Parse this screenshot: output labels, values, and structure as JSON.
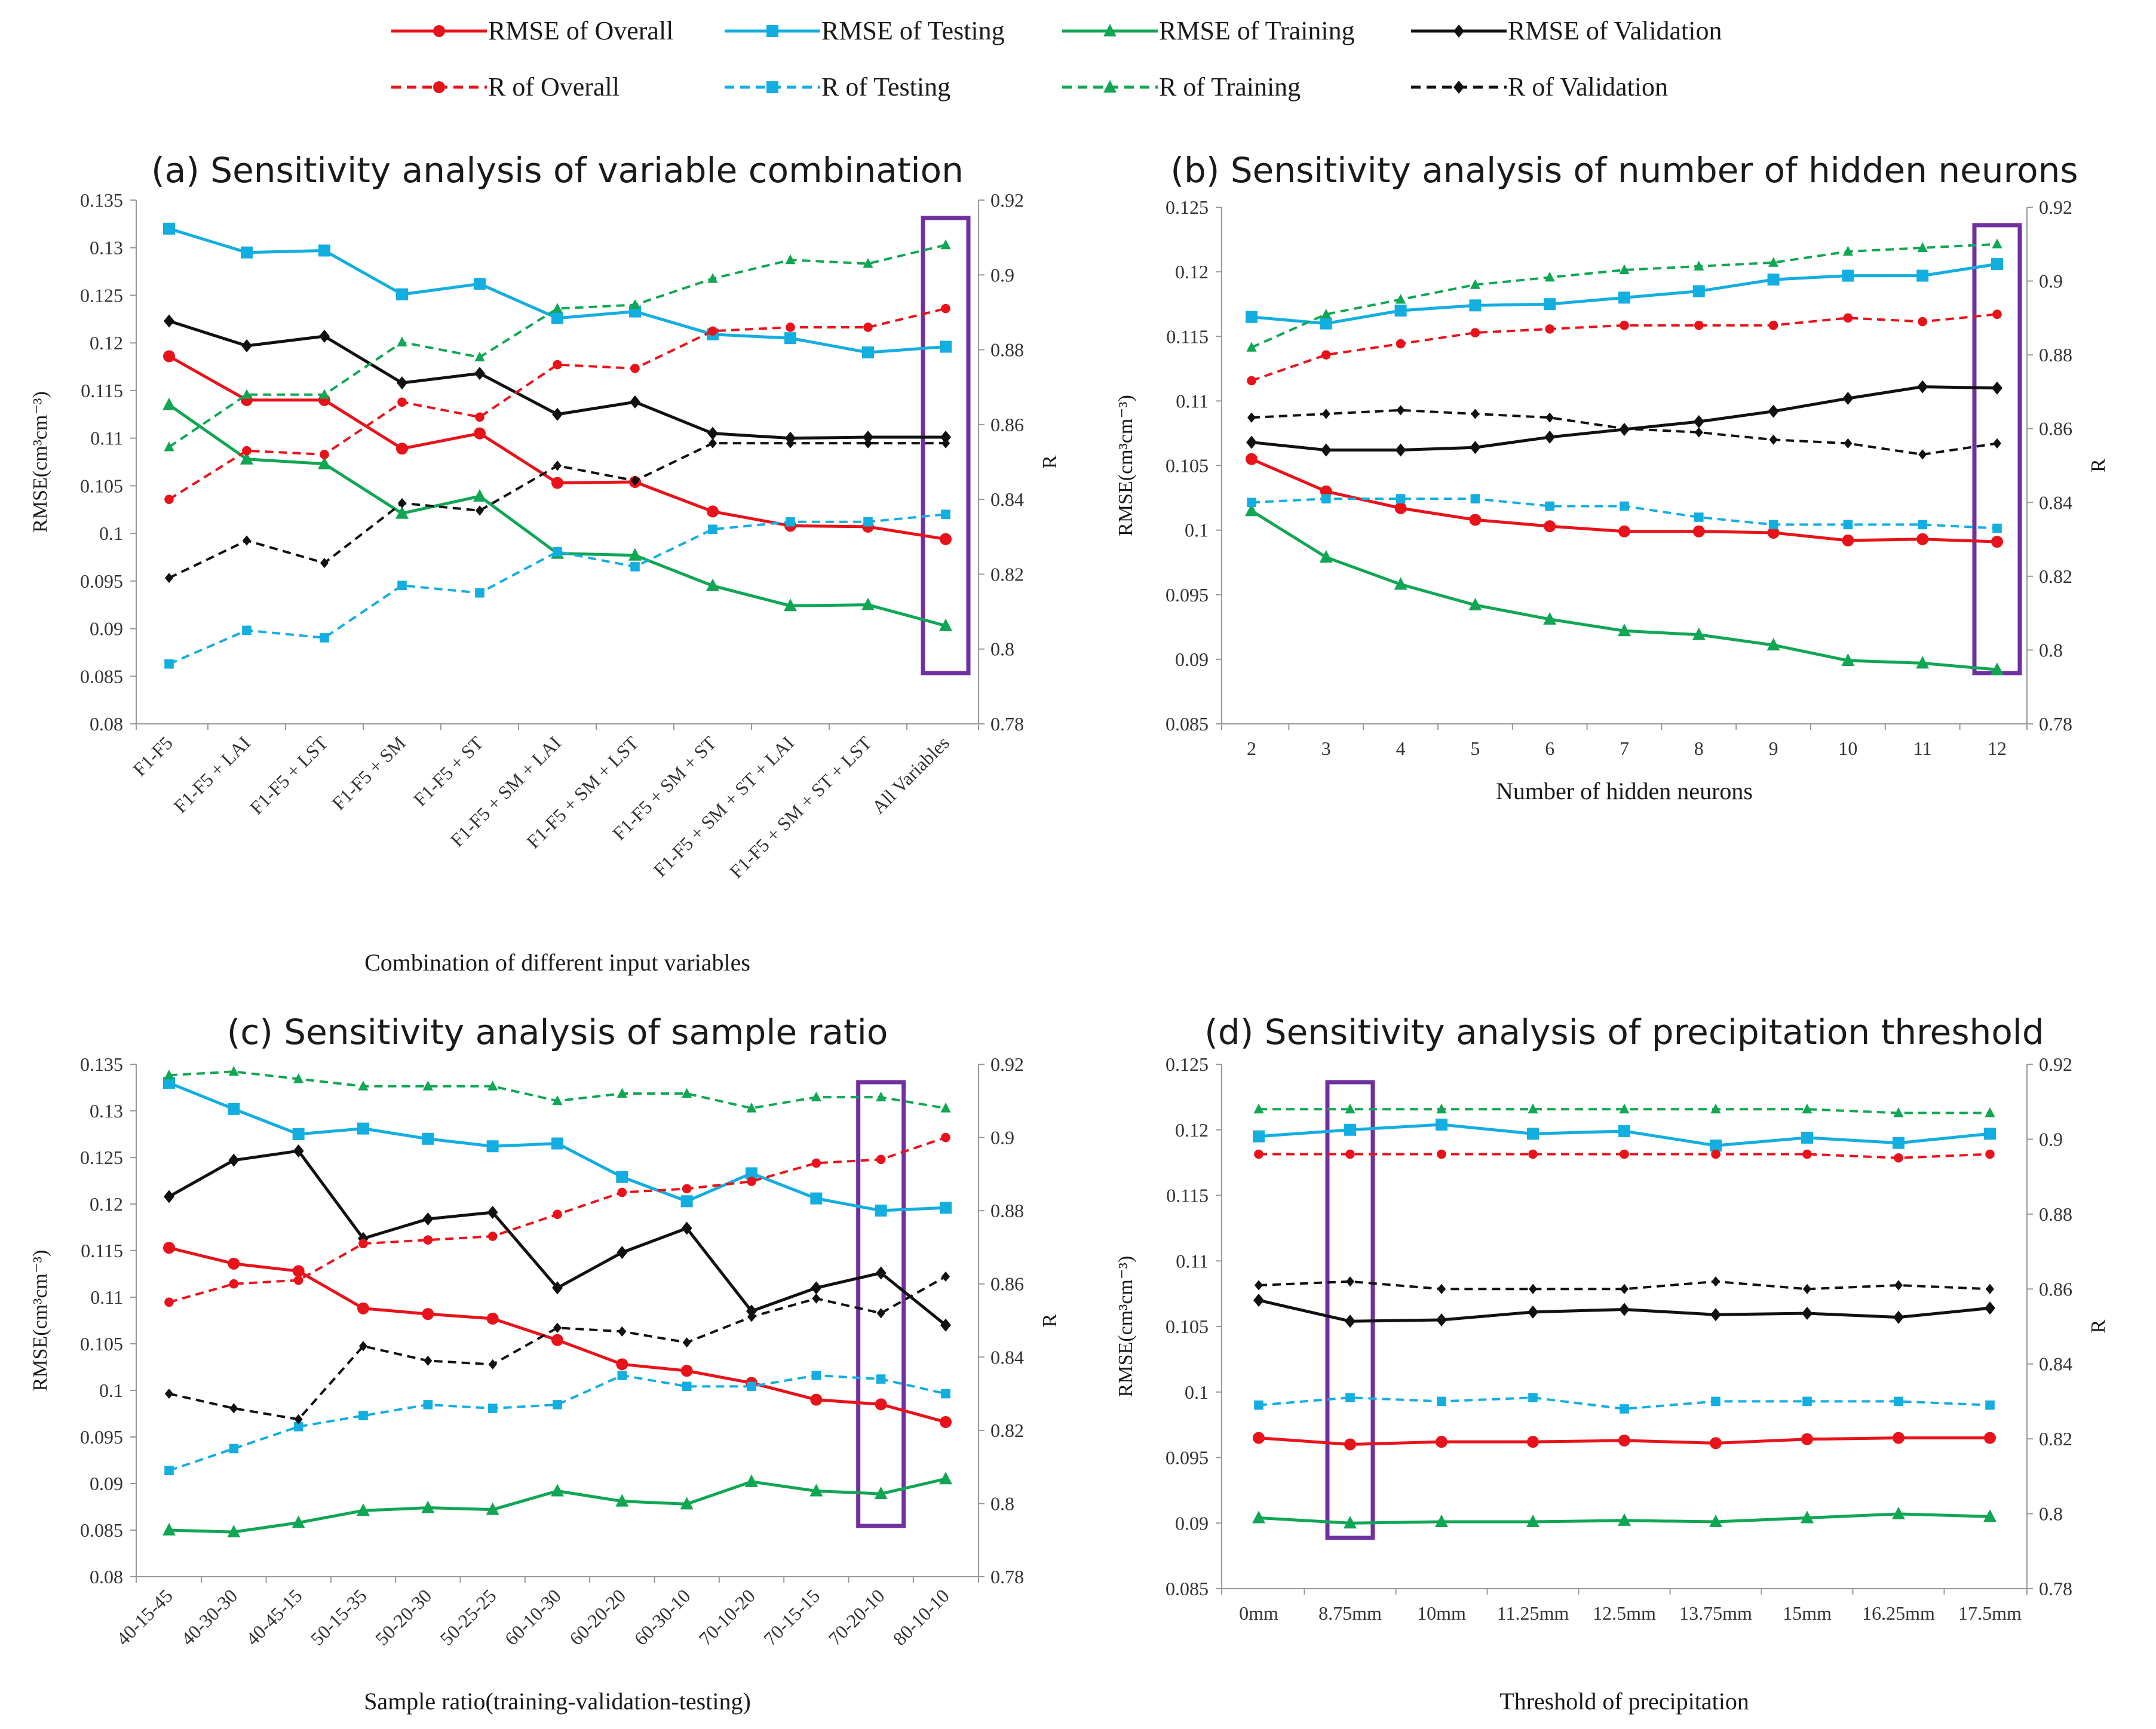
{
  "colors": {
    "overall": "#e8131a",
    "testing": "#13aee0",
    "training": "#10a653",
    "validation": "#111111",
    "highlight": "#7030a0",
    "axis": "#999999"
  },
  "legend": [
    {
      "label": "RMSE of Overall",
      "color": "#e8131a",
      "dash": false,
      "marker": "circle"
    },
    {
      "label": "RMSE of Testing",
      "color": "#13aee0",
      "dash": false,
      "marker": "square"
    },
    {
      "label": "RMSE of Training",
      "color": "#10a653",
      "dash": false,
      "marker": "triangle"
    },
    {
      "label": "RMSE of Validation",
      "color": "#111111",
      "dash": false,
      "marker": "diamond"
    },
    {
      "label": "R of Overall",
      "color": "#e8131a",
      "dash": true,
      "marker": "circle"
    },
    {
      "label": "R of Testing",
      "color": "#13aee0",
      "dash": true,
      "marker": "square"
    },
    {
      "label": "R of Training",
      "color": "#10a653",
      "dash": true,
      "marker": "triangle"
    },
    {
      "label": "R of Validation",
      "color": "#111111",
      "dash": true,
      "marker": "diamond"
    }
  ],
  "chart_data": [
    {
      "type": "line",
      "title": "(a) Sensitivity analysis of variable combination",
      "xlabel": "Combination of different input variables",
      "ylabel": "RMSE(cm³cm⁻³)",
      "ylabel_right": "R",
      "ylim": [
        0.08,
        0.135
      ],
      "yticks": [
        "0.08",
        "0.085",
        "0.09",
        "0.095",
        "0.1",
        "0.105",
        "0.11",
        "0.115",
        "0.12",
        "0.125",
        "0.13",
        "0.135"
      ],
      "y2lim": [
        0.78,
        0.92
      ],
      "y2ticks": [
        "0.78",
        "0.8",
        "0.82",
        "0.84",
        "0.86",
        "0.88",
        "0.9",
        "0.92"
      ],
      "rotate_x": true,
      "highlight_index": 10,
      "categories": [
        "F1-F5",
        "F1-F5 + LAI",
        "F1-F5 + LST",
        "F1-F5 + SM",
        "F1-F5 + ST",
        "F1-F5 + SM + LAI",
        "F1-F5 + SM + LST",
        "F1-F5 + SM + ST",
        "F1-F5 + SM + ST + LAI",
        "F1-F5 + SM + ST + LST",
        "All Variables"
      ],
      "series": [
        {
          "name": "RMSE of Overall",
          "axis": "left",
          "values": [
            0.1186,
            0.114,
            0.114,
            0.1089,
            0.1105,
            0.1053,
            0.1054,
            0.1023,
            0.1008,
            0.1007,
            0.0994
          ]
        },
        {
          "name": "RMSE of Testing",
          "axis": "left",
          "values": [
            0.132,
            0.1295,
            0.1297,
            0.1251,
            0.1262,
            0.1226,
            0.1233,
            0.1209,
            0.1205,
            0.119,
            0.1196
          ]
        },
        {
          "name": "RMSE of Training",
          "axis": "left",
          "values": [
            0.1135,
            0.1078,
            0.1073,
            0.1021,
            0.1039,
            0.0979,
            0.0977,
            0.0945,
            0.0924,
            0.0925,
            0.0903
          ]
        },
        {
          "name": "RMSE of Validation",
          "axis": "left",
          "values": [
            0.1223,
            0.1197,
            0.1207,
            0.1158,
            0.1168,
            0.1125,
            0.1138,
            0.1105,
            0.11,
            0.1101,
            0.1101
          ]
        },
        {
          "name": "R of Overall",
          "axis": "right",
          "values": [
            0.84,
            0.853,
            0.852,
            0.866,
            0.862,
            0.876,
            0.875,
            0.885,
            0.886,
            0.886,
            0.891
          ]
        },
        {
          "name": "R of Testing",
          "axis": "right",
          "values": [
            0.796,
            0.805,
            0.803,
            0.817,
            0.815,
            0.826,
            0.822,
            0.832,
            0.834,
            0.834,
            0.836
          ]
        },
        {
          "name": "R of Training",
          "axis": "right",
          "values": [
            0.854,
            0.868,
            0.868,
            0.882,
            0.878,
            0.891,
            0.892,
            0.899,
            0.904,
            0.903,
            0.908
          ]
        },
        {
          "name": "R of Validation",
          "axis": "right",
          "values": [
            0.819,
            0.829,
            0.823,
            0.839,
            0.837,
            0.849,
            0.845,
            0.855,
            0.855,
            0.855,
            0.855
          ]
        }
      ]
    },
    {
      "type": "line",
      "title": "(b) Sensitivity analysis of number of hidden neurons",
      "xlabel": "Number of hidden neurons",
      "ylabel": "RMSE(cm³cm⁻³)",
      "ylabel_right": "R",
      "ylim": [
        0.085,
        0.125
      ],
      "yticks": [
        "0.085",
        "0.09",
        "0.095",
        "0.1",
        "0.105",
        "0.11",
        "0.115",
        "0.12",
        "0.125"
      ],
      "y2lim": [
        0.78,
        0.92
      ],
      "y2ticks": [
        "0.78",
        "0.8",
        "0.82",
        "0.84",
        "0.86",
        "0.88",
        "0.9",
        "0.92"
      ],
      "rotate_x": false,
      "highlight_index": 10,
      "categories": [
        "2",
        "3",
        "4",
        "5",
        "6",
        "7",
        "8",
        "9",
        "10",
        "11",
        "12"
      ],
      "series": [
        {
          "name": "RMSE of Overall",
          "axis": "left",
          "values": [
            0.1055,
            0.103,
            0.1017,
            0.1008,
            0.1003,
            0.0999,
            0.0999,
            0.0998,
            0.0992,
            0.0993,
            0.0991
          ]
        },
        {
          "name": "RMSE of Testing",
          "axis": "left",
          "values": [
            0.1165,
            0.116,
            0.117,
            0.1174,
            0.1175,
            0.118,
            0.1185,
            0.1194,
            0.1197,
            0.1197,
            0.1206
          ]
        },
        {
          "name": "RMSE of Training",
          "axis": "left",
          "values": [
            0.1015,
            0.0979,
            0.0958,
            0.0942,
            0.0931,
            0.0922,
            0.0919,
            0.0911,
            0.0899,
            0.0897,
            0.0892
          ]
        },
        {
          "name": "RMSE of Validation",
          "axis": "left",
          "values": [
            0.1068,
            0.1062,
            0.1062,
            0.1064,
            0.1072,
            0.1078,
            0.1084,
            0.1092,
            0.1102,
            0.1111,
            0.111
          ]
        },
        {
          "name": "R of Overall",
          "axis": "right",
          "values": [
            0.873,
            0.88,
            0.883,
            0.886,
            0.887,
            0.888,
            0.888,
            0.888,
            0.89,
            0.889,
            0.891
          ]
        },
        {
          "name": "R of Testing",
          "axis": "right",
          "values": [
            0.84,
            0.841,
            0.841,
            0.841,
            0.839,
            0.839,
            0.836,
            0.834,
            0.834,
            0.834,
            0.833
          ]
        },
        {
          "name": "R of Training",
          "axis": "right",
          "values": [
            0.882,
            0.891,
            0.895,
            0.899,
            0.901,
            0.903,
            0.904,
            0.905,
            0.908,
            0.909,
            0.91
          ]
        },
        {
          "name": "R of Validation",
          "axis": "right",
          "values": [
            0.863,
            0.864,
            0.865,
            0.864,
            0.863,
            0.86,
            0.859,
            0.857,
            0.856,
            0.853,
            0.856
          ]
        }
      ]
    },
    {
      "type": "line",
      "title": "(c) Sensitivity analysis of sample ratio",
      "xlabel": "Sample ratio(training-validation-testing)",
      "ylabel": "RMSE(cm³cm⁻³)",
      "ylabel_right": "R",
      "ylim": [
        0.08,
        0.135
      ],
      "yticks": [
        "0.08",
        "0.085",
        "0.09",
        "0.095",
        "0.1",
        "0.105",
        "0.11",
        "0.115",
        "0.12",
        "0.125",
        "0.13",
        "0.135"
      ],
      "y2lim": [
        0.78,
        0.92
      ],
      "y2ticks": [
        "0.78",
        "0.8",
        "0.82",
        "0.84",
        "0.86",
        "0.88",
        "0.9",
        "0.92"
      ],
      "rotate_x": true,
      "highlight_index": 11,
      "categories": [
        "40-15-45",
        "40-30-30",
        "40-45-15",
        "50-15-35",
        "50-20-30",
        "50-25-25",
        "60-10-30",
        "60-20-20",
        "60-30-10",
        "70-10-20",
        "70-15-15",
        "70-20-10",
        "80-10-10"
      ],
      "series": [
        {
          "name": "RMSE of Overall",
          "axis": "left",
          "values": [
            0.1153,
            0.1136,
            0.1128,
            0.1088,
            0.1082,
            0.1077,
            0.1054,
            0.1028,
            0.1021,
            0.1008,
            0.099,
            0.0985,
            0.0966
          ]
        },
        {
          "name": "RMSE of Testing",
          "axis": "left",
          "values": [
            0.133,
            0.1302,
            0.1275,
            0.1281,
            0.127,
            0.1262,
            0.1265,
            0.1229,
            0.1203,
            0.1233,
            0.1206,
            0.1193,
            0.1196
          ]
        },
        {
          "name": "RMSE of Training",
          "axis": "left",
          "values": [
            0.085,
            0.0848,
            0.0858,
            0.0871,
            0.0874,
            0.0872,
            0.0892,
            0.0881,
            0.0878,
            0.0902,
            0.0892,
            0.0889,
            0.0905
          ]
        },
        {
          "name": "RMSE of Validation",
          "axis": "left",
          "values": [
            0.1208,
            0.1247,
            0.1257,
            0.1163,
            0.1184,
            0.1191,
            0.111,
            0.1148,
            0.1174,
            0.1085,
            0.111,
            0.1126,
            0.107
          ]
        },
        {
          "name": "R of Overall",
          "axis": "right",
          "values": [
            0.855,
            0.86,
            0.861,
            0.871,
            0.872,
            0.873,
            0.879,
            0.885,
            0.886,
            0.888,
            0.893,
            0.894,
            0.9
          ]
        },
        {
          "name": "R of Testing",
          "axis": "right",
          "values": [
            0.809,
            0.815,
            0.821,
            0.824,
            0.827,
            0.826,
            0.827,
            0.835,
            0.832,
            0.832,
            0.835,
            0.834,
            0.83
          ]
        },
        {
          "name": "R of Training",
          "axis": "right",
          "values": [
            0.917,
            0.918,
            0.916,
            0.914,
            0.914,
            0.914,
            0.91,
            0.912,
            0.912,
            0.908,
            0.911,
            0.911,
            0.908
          ]
        },
        {
          "name": "R of Validation",
          "axis": "right",
          "values": [
            0.83,
            0.826,
            0.823,
            0.843,
            0.839,
            0.838,
            0.848,
            0.847,
            0.844,
            0.851,
            0.856,
            0.852,
            0.862
          ]
        }
      ]
    },
    {
      "type": "line",
      "title": "(d) Sensitivity analysis of precipitation threshold",
      "xlabel": "Threshold  of precipitation",
      "ylabel": "RMSE(cm³cm⁻³)",
      "ylabel_right": "R",
      "ylim": [
        0.085,
        0.125
      ],
      "yticks": [
        "0.085",
        "0.09",
        "0.095",
        "0.1",
        "0.105",
        "0.11",
        "0.115",
        "0.12",
        "0.125"
      ],
      "y2lim": [
        0.78,
        0.92
      ],
      "y2ticks": [
        "0.78",
        "0.8",
        "0.82",
        "0.84",
        "0.86",
        "0.88",
        "0.9",
        "0.92"
      ],
      "rotate_x": false,
      "highlight_index": 1,
      "categories": [
        "0mm",
        "8.75mm",
        "10mm",
        "11.25mm",
        "12.5mm",
        "13.75mm",
        "15mm",
        "16.25mm",
        "17.5mm"
      ],
      "series": [
        {
          "name": "RMSE of Overall",
          "axis": "left",
          "values": [
            0.0965,
            0.096,
            0.0962,
            0.0962,
            0.0963,
            0.0961,
            0.0964,
            0.0965,
            0.0965
          ]
        },
        {
          "name": "RMSE of Testing",
          "axis": "left",
          "values": [
            0.1195,
            0.12,
            0.1204,
            0.1197,
            0.1199,
            0.1188,
            0.1194,
            0.119,
            0.1197
          ]
        },
        {
          "name": "RMSE of Training",
          "axis": "left",
          "values": [
            0.0904,
            0.09,
            0.0901,
            0.0901,
            0.0902,
            0.0901,
            0.0904,
            0.0907,
            0.0905
          ]
        },
        {
          "name": "RMSE of Validation",
          "axis": "left",
          "values": [
            0.107,
            0.1054,
            0.1055,
            0.1061,
            0.1063,
            0.1059,
            0.106,
            0.1057,
            0.1064
          ]
        },
        {
          "name": "R of Overall",
          "axis": "right",
          "values": [
            0.896,
            0.896,
            0.896,
            0.896,
            0.896,
            0.896,
            0.896,
            0.895,
            0.896
          ]
        },
        {
          "name": "R of Testing",
          "axis": "right",
          "values": [
            0.829,
            0.831,
            0.83,
            0.831,
            0.828,
            0.83,
            0.83,
            0.83,
            0.829
          ]
        },
        {
          "name": "R of Training",
          "axis": "right",
          "values": [
            0.908,
            0.908,
            0.908,
            0.908,
            0.908,
            0.908,
            0.908,
            0.907,
            0.907
          ]
        },
        {
          "name": "R of Validation",
          "axis": "right",
          "values": [
            0.861,
            0.862,
            0.86,
            0.86,
            0.86,
            0.862,
            0.86,
            0.861,
            0.86
          ]
        }
      ]
    }
  ]
}
